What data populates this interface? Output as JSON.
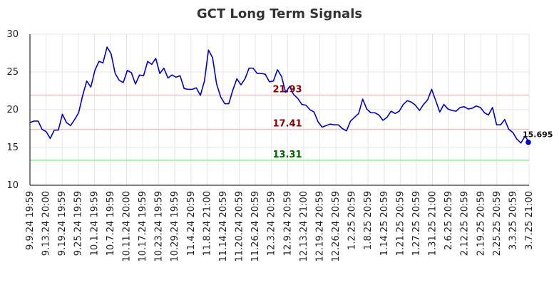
{
  "chart_data": {
    "type": "line",
    "title": "GCT Long Term Signals",
    "xlabel": "",
    "ylabel": "",
    "ylim": [
      10,
      30
    ],
    "yticks": [
      10,
      15,
      20,
      25,
      30
    ],
    "grid": true,
    "x_tick_labels": [
      "9.9.24 19:59",
      "9.13.24 20:00",
      "9.19.24 19:59",
      "9.25.24 19:59",
      "10.1.24 19:59",
      "10.7.24 19:59",
      "10.11.24 20:00",
      "10.17.24 19:59",
      "10.23.24 19:59",
      "10.29.24 19:59",
      "11.4.24 20:59",
      "11.8.24 21:00",
      "11.14.24 20:59",
      "11.20.24 20:59",
      "11.26.24 20:59",
      "12.3.24 20:59",
      "12.9.24 20:59",
      "12.13.24 21:00",
      "12.19.24 20:59",
      "12.26.24 20:59",
      "1.2.25 20:59",
      "1.8.25 20:59",
      "1.14.25 20:59",
      "1.21.25 20:59",
      "1.27.25 20:59",
      "1.31.25 21:00",
      "2.6.25 20:59",
      "2.12.25 20:59",
      "2.19.25 20:59",
      "2.25.25 20:59",
      "3.3.25 20:59",
      "3.7.25 21:00"
    ],
    "series": [
      {
        "color": "#0000cc",
        "values": [
          18.3,
          18.5,
          18.5,
          17.4,
          17.1,
          16.2,
          17.3,
          17.3,
          19.4,
          18.3,
          17.9,
          18.7,
          19.6,
          21.9,
          23.8,
          23.0,
          25.2,
          26.4,
          26.2,
          28.3,
          27.4,
          24.8,
          23.9,
          23.6,
          25.2,
          24.9,
          23.4,
          24.6,
          24.5,
          26.4,
          26.0,
          26.8,
          24.8,
          25.5,
          24.2,
          24.6,
          24.3,
          24.5,
          22.8,
          22.7,
          22.7,
          22.9,
          21.9,
          23.8,
          27.9,
          26.9,
          23.4,
          21.7,
          20.8,
          20.8,
          22.6,
          24.1,
          23.3,
          24.1,
          25.5,
          25.5,
          24.8,
          24.8,
          24.7,
          23.7,
          23.8,
          25.3,
          24.4,
          22.3,
          23.1,
          22.0,
          21.5,
          20.7,
          20.6,
          20.0,
          19.7,
          18.4,
          17.7,
          17.9,
          18.1,
          18.0,
          18.0,
          17.5,
          17.2,
          18.5,
          19.0,
          19.5,
          21.4,
          20.1,
          19.6,
          19.6,
          19.3,
          18.6,
          19.0,
          19.8,
          19.5,
          19.8,
          20.7,
          21.2,
          21.0,
          20.6,
          19.9,
          20.7,
          21.3,
          22.7,
          21.2,
          19.7,
          20.7,
          20.1,
          19.9,
          19.8,
          20.3,
          20.4,
          20.1,
          20.2,
          20.5,
          20.3,
          19.6,
          19.3,
          20.3,
          18.0,
          18.0,
          18.7,
          17.4,
          17.0,
          16.1,
          15.6,
          16.5,
          15.695
        ]
      }
    ],
    "reference_lines": [
      {
        "value": 21.93,
        "label": "21.93",
        "line_color": "#ffbbbb",
        "label_color": "#8b0000"
      },
      {
        "value": 17.41,
        "label": "17.41",
        "line_color": "#ffbbbb",
        "label_color": "#8b0000"
      },
      {
        "value": 13.31,
        "label": "13.31",
        "line_color": "#90ee90",
        "label_color": "#006400"
      }
    ],
    "last_point": {
      "value": 15.695,
      "label": "15.695",
      "color": "#0000cc"
    }
  }
}
